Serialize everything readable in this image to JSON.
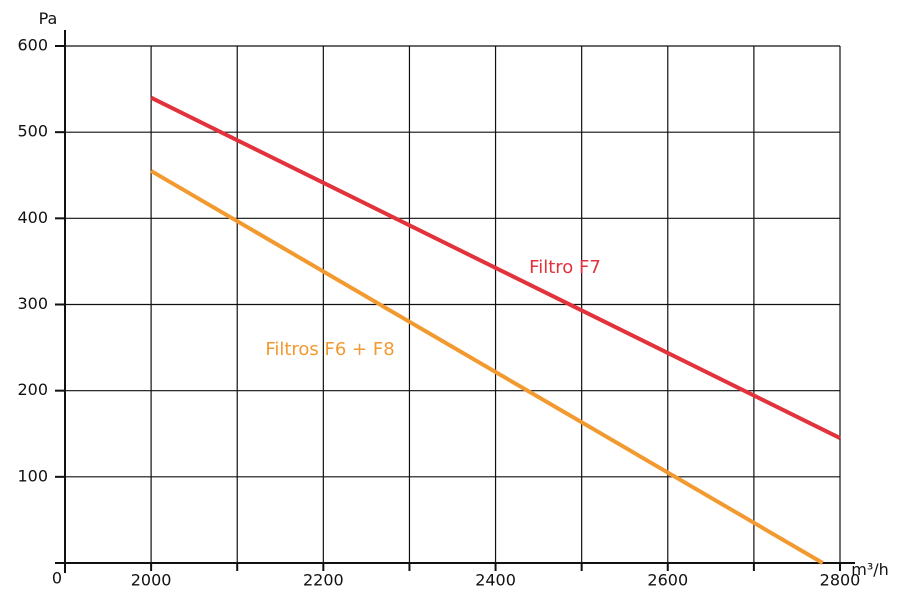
{
  "chart_data": {
    "type": "line",
    "y_axis_label": "Pa",
    "x_axis_label": "m³/h",
    "xlim": [
      1900,
      2800
    ],
    "ylim": [
      0,
      600
    ],
    "xticks": [
      2000,
      2200,
      2400,
      2600,
      2800
    ],
    "x_minor_ticks": [
      2100,
      2300,
      2500,
      2700
    ],
    "yticks": [
      0,
      100,
      200,
      300,
      400,
      500,
      600
    ],
    "grid": true,
    "series": [
      {
        "name": "Filtro F7",
        "color": "#e2323c",
        "x": [
          2000,
          2800
        ],
        "values": [
          540,
          145
        ]
      },
      {
        "name": "Filtros F6 + F8",
        "color": "#f29a30",
        "x": [
          2000,
          2780
        ],
        "values": [
          455,
          0
        ]
      }
    ]
  }
}
